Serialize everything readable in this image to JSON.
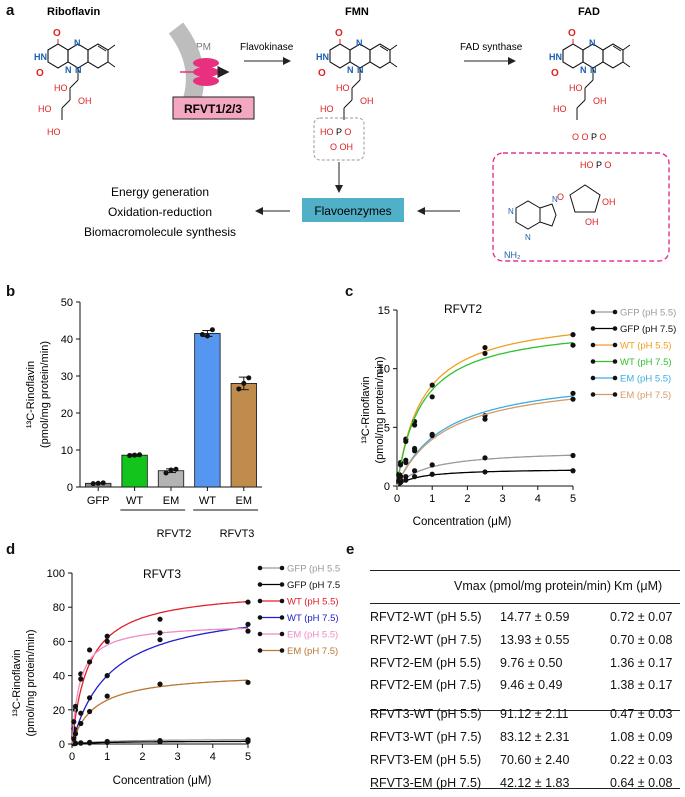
{
  "panel_a": {
    "label": "a",
    "riboflavin": "Riboflavin",
    "fmn": "FMN",
    "fad": "FAD",
    "pm": "PM",
    "transporter": "RFVT1/2/3",
    "flavokinase": "Flavokinase",
    "fad_synthase": "FAD synthase",
    "flavoenzymes": "Flavoenzymes",
    "functions": [
      "Energy generation",
      "Oxidation-reduction",
      "Biomacromolecule synthesis"
    ],
    "nh2": "NH₂",
    "colors": {
      "transporter": "#f4a7c1",
      "flavoenzymes": "#4fb0c8",
      "dashed_pink": "#e0339a"
    }
  },
  "panel_b": {
    "label": "b",
    "ylabel_line1": "¹³C-Rinoflavin",
    "ylabel_line2": "(pmol/mg protein/min)",
    "group_labels": [
      "RFVT2",
      "RFVT3"
    ]
  },
  "panel_c": {
    "label": "c",
    "title": "RFVT2",
    "xlabel": "Concentration (μM)",
    "ylabel_line1": "¹³C-Rinoflavin",
    "ylabel_line2": "(pmol/mg protein/min)"
  },
  "panel_d": {
    "label": "d",
    "title": "RFVT3",
    "xlabel": "Concentration (μM)",
    "ylabel_line1": "¹³C-Rinoflavin",
    "ylabel_line2": "(pmol/mg protein/min)"
  },
  "panel_e": {
    "label": "e",
    "headers": [
      "Vmax (pmol/mg protein/min)",
      "Km (μM)"
    ],
    "rows": [
      [
        "RFVT2-WT (pH 5.5)",
        "14.77 ± 0.59",
        "0.72 ± 0.07"
      ],
      [
        "RFVT2-WT (pH 7.5)",
        "13.93 ± 0.55",
        "0.70 ± 0.08"
      ],
      [
        "RFVT2-EM (pH 5.5)",
        "9.76 ± 0.50",
        "1.36 ± 0.17"
      ],
      [
        "RFVT2-EM (pH 7.5)",
        "9.46 ± 0.49",
        "1.38 ± 0.17"
      ],
      [
        "RFVT3-WT (pH 5.5)",
        "91.12 ± 2.11",
        "0.47 ± 0.03"
      ],
      [
        "RFVT3-WT (pH 7.5)",
        "83.12 ± 2.31",
        "1.08 ± 0.09"
      ],
      [
        "RFVT3-EM (pH 5.5)",
        "70.60 ± 2.40",
        "0.22 ± 0.03"
      ],
      [
        "RFVT3-EM (pH 7.5)",
        "42.12 ± 1.83",
        "0.64 ± 0.08"
      ]
    ]
  },
  "chart_data": [
    {
      "type": "bar",
      "panel": "b",
      "categories": [
        "GFP",
        "WT",
        "EM",
        "WT",
        "EM"
      ],
      "groups": [
        "",
        "RFVT2",
        "RFVT2",
        "RFVT3",
        "RFVT3"
      ],
      "values": [
        1.0,
        8.6,
        4.4,
        41.5,
        28.0
      ],
      "errors": [
        0.1,
        0.3,
        0.5,
        0.8,
        1.7
      ],
      "points": [
        [
          0.9,
          1.0,
          1.1
        ],
        [
          8.5,
          8.6,
          8.7
        ],
        [
          3.8,
          4.6,
          4.8
        ],
        [
          41.2,
          40.8,
          42.5
        ],
        [
          26.5,
          28.0,
          29.5
        ]
      ],
      "colors": [
        "#8c8c8c",
        "#12c41c",
        "#b3b3b3",
        "#5597f0",
        "#bf8c4c"
      ],
      "ylabel": "¹³C-Rinoflavin (pmol/mg protein/min)",
      "ylim": [
        0,
        50
      ],
      "yticks": [
        0,
        10,
        20,
        30,
        40,
        50
      ]
    },
    {
      "type": "scatter",
      "panel": "c",
      "title": "RFVT2",
      "xlabel": "Concentration (μM)",
      "ylabel": "¹³C-Rinoflavin (pmol/mg protein/min)",
      "xlim": [
        0,
        5
      ],
      "ylim": [
        0,
        15
      ],
      "xticks": [
        0,
        1,
        2,
        3,
        4,
        5
      ],
      "yticks": [
        0,
        5,
        10,
        15
      ],
      "x": [
        0.05,
        0.1,
        0.25,
        0.5,
        1,
        2.5,
        5
      ],
      "legend_position": "right",
      "series": [
        {
          "name": "GFP (pH 5.5)",
          "color": "#9a9a9a",
          "vmax": 3.1,
          "km": 0.9,
          "values": [
            0.3,
            0.5,
            0.8,
            1.3,
            1.8,
            2.4,
            2.6
          ]
        },
        {
          "name": "GFP (pH 7.5)",
          "color": "#000000",
          "vmax": 1.5,
          "km": 0.6,
          "values": [
            0.2,
            0.3,
            0.5,
            0.8,
            1.0,
            1.2,
            1.3
          ]
        },
        {
          "name": "WT (pH 5.5)",
          "color": "#f0a020",
          "vmax": 14.77,
          "km": 0.72,
          "values": [
            1.0,
            2.0,
            4.0,
            5.5,
            8.6,
            11.8,
            12.9
          ]
        },
        {
          "name": "WT (pH 7.5)",
          "color": "#30c030",
          "vmax": 13.93,
          "km": 0.7,
          "values": [
            0.9,
            1.8,
            3.8,
            5.2,
            7.6,
            11.3,
            12.0
          ]
        },
        {
          "name": "EM (pH 5.5)",
          "color": "#3aaee0",
          "vmax": 9.76,
          "km": 1.36,
          "values": [
            0.5,
            0.9,
            2.2,
            3.2,
            4.4,
            6.0,
            7.9
          ]
        },
        {
          "name": "EM (pH 7.5)",
          "color": "#d69a68",
          "vmax": 9.46,
          "km": 1.38,
          "values": [
            0.4,
            0.8,
            2.0,
            3.0,
            4.3,
            5.7,
            7.4
          ]
        }
      ]
    },
    {
      "type": "scatter",
      "panel": "d",
      "title": "RFVT3",
      "xlabel": "Concentration (μM)",
      "ylabel": "¹³C-Rinoflavin (pmol/mg protein/min)",
      "xlim": [
        0,
        5
      ],
      "ylim": [
        0,
        100
      ],
      "xticks": [
        0,
        1,
        2,
        3,
        4,
        5
      ],
      "yticks": [
        0,
        20,
        40,
        60,
        80,
        100
      ],
      "x": [
        0.05,
        0.1,
        0.25,
        0.5,
        1,
        2.5,
        5
      ],
      "legend_position": "right",
      "series": [
        {
          "name": "GFP (pH 5.5)",
          "color": "#9a9a9a",
          "vmax": 3.0,
          "km": 1.0,
          "values": [
            0.3,
            0.5,
            0.7,
            1.0,
            1.5,
            2.0,
            2.5
          ]
        },
        {
          "name": "GFP (pH 7.5)",
          "color": "#000000",
          "vmax": 1.8,
          "km": 1.0,
          "values": [
            0.2,
            0.3,
            0.5,
            0.6,
            0.9,
            1.3,
            1.5
          ]
        },
        {
          "name": "WT (pH 5.5)",
          "color": "#e0202a",
          "vmax": 91.12,
          "km": 0.47,
          "values": [
            9,
            20,
            41,
            55,
            63,
            73,
            83
          ]
        },
        {
          "name": "WT (pH 7.5)",
          "color": "#2020d0",
          "vmax": 83.12,
          "km": 1.08,
          "values": [
            4,
            8,
            18,
            27,
            40,
            61,
            70
          ]
        },
        {
          "name": "EM (pH 5.5)",
          "color": "#f08ac8",
          "vmax": 70.6,
          "km": 0.22,
          "values": [
            13,
            22,
            38,
            48,
            60,
            65,
            66
          ]
        },
        {
          "name": "EM (pH 7.5)",
          "color": "#b87830",
          "vmax": 42.12,
          "km": 0.64,
          "values": [
            3,
            6,
            12,
            19,
            28,
            35,
            36
          ]
        }
      ]
    }
  ]
}
